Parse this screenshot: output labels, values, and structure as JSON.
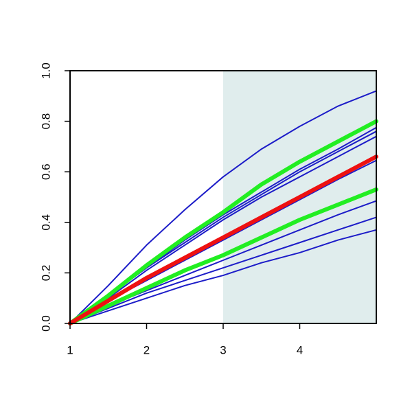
{
  "chart_data": {
    "type": "line",
    "x": [
      1,
      1.5,
      2,
      2.5,
      3,
      3.5,
      4,
      4.5,
      5
    ],
    "xlim": [
      1,
      5
    ],
    "xticks": [
      1,
      2,
      3,
      4
    ],
    "ylim": [
      0,
      1
    ],
    "yticks": [
      {
        "value": 0,
        "label": "0.0"
      },
      {
        "value": 0.2,
        "label": "0.2"
      },
      {
        "value": 0.4,
        "label": "0.4"
      },
      {
        "value": 0.6,
        "label": "0.6"
      },
      {
        "value": 0.8,
        "label": "0.8"
      },
      {
        "value": 1,
        "label": "1.0"
      }
    ],
    "highlight_xlim": [
      3,
      5
    ],
    "highlight_color": "#e0eded",
    "series": [
      {
        "color": "#1c1cc8",
        "linewidth": 2,
        "values": [
          0,
          0.15,
          0.31,
          0.45,
          0.58,
          0.69,
          0.78,
          0.86,
          0.92
        ]
      },
      {
        "color": "#1c1cc8",
        "linewidth": 2,
        "values": [
          0,
          0.11,
          0.22,
          0.33,
          0.43,
          0.52,
          0.61,
          0.69,
          0.775
        ]
      },
      {
        "color": "#1c1cc8",
        "linewidth": 2,
        "values": [
          0,
          0.11,
          0.22,
          0.32,
          0.42,
          0.51,
          0.6,
          0.68,
          0.76
        ]
      },
      {
        "color": "#1c1cc8",
        "linewidth": 2,
        "values": [
          0,
          0.1,
          0.21,
          0.31,
          0.41,
          0.5,
          0.58,
          0.66,
          0.74
        ]
      },
      {
        "color": "#1c1cc8",
        "linewidth": 2,
        "values": [
          0,
          0.09,
          0.17,
          0.25,
          0.33,
          0.41,
          0.49,
          0.57,
          0.645
        ]
      },
      {
        "color": "#1c1cc8",
        "linewidth": 2,
        "values": [
          0,
          0.07,
          0.13,
          0.19,
          0.25,
          0.31,
          0.37,
          0.43,
          0.485
        ]
      },
      {
        "color": "#1c1cc8",
        "linewidth": 2,
        "values": [
          0,
          0.06,
          0.12,
          0.17,
          0.22,
          0.27,
          0.32,
          0.37,
          0.42
        ]
      },
      {
        "color": "#1c1cc8",
        "linewidth": 2,
        "values": [
          0,
          0.05,
          0.1,
          0.15,
          0.19,
          0.24,
          0.28,
          0.33,
          0.37
        ]
      },
      {
        "color": "#22ee22",
        "linewidth": 6,
        "values": [
          0,
          0.11,
          0.23,
          0.34,
          0.44,
          0.55,
          0.64,
          0.72,
          0.8
        ]
      },
      {
        "color": "#22ee22",
        "linewidth": 6,
        "values": [
          0,
          0.07,
          0.14,
          0.21,
          0.27,
          0.34,
          0.41,
          0.47,
          0.53
        ]
      },
      {
        "color": "#ee1111",
        "linewidth": 6,
        "values": [
          0,
          0.09,
          0.18,
          0.26,
          0.34,
          0.42,
          0.5,
          0.58,
          0.66
        ]
      }
    ]
  }
}
